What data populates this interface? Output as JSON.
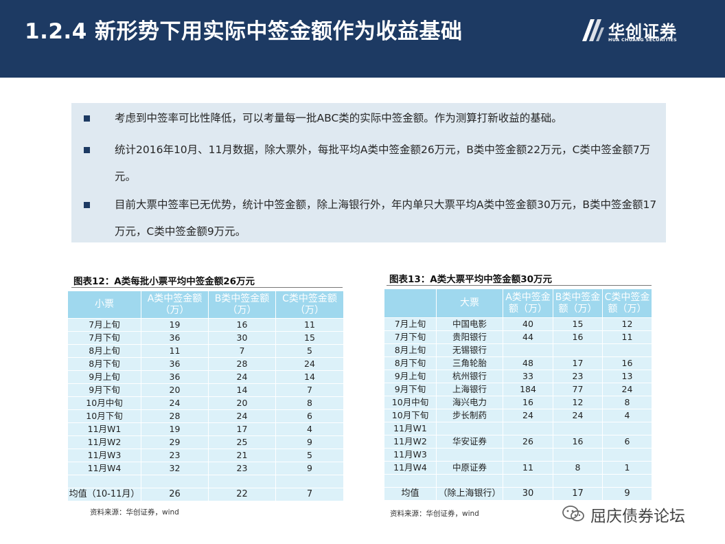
{
  "header": {
    "title": "1.2.4  新形势下用实际中签金额作为收益基础",
    "logo_cn": "华创证券",
    "logo_en": "HUA CHUANG SECURITIES"
  },
  "bullets": [
    "考虑到中签率可比性降低，可以考量每一批ABC类的实际中签金额。作为测算打新收益的基础。",
    "统计2016年10月、11月数据，除大票外，每批平均A类中签金额26万元，B类中签金额22万元，C类中签金额7万元。",
    "目前大票中签率已无优势，统计中签金额，除上海银行外，年内单只大票平均A类中签金额30万元，B类中签金额17万元，C类中签金额9万元。"
  ],
  "table12": {
    "caption": "图表12：A类每批小票平均中签金额26万元",
    "headers": [
      "小票",
      "A类中签金额（万）",
      "B类中签金额（万）",
      "C类中签金额（万）"
    ],
    "rows": [
      [
        "7月上旬",
        "19",
        "16",
        "11"
      ],
      [
        "7月下旬",
        "36",
        "30",
        "15"
      ],
      [
        "8月上旬",
        "11",
        "7",
        "5"
      ],
      [
        "8月下旬",
        "36",
        "28",
        "24"
      ],
      [
        "9月上旬",
        "36",
        "24",
        "14"
      ],
      [
        "9月下旬",
        "20",
        "14",
        "7"
      ],
      [
        "10月中旬",
        "24",
        "20",
        "8"
      ],
      [
        "10月下旬",
        "28",
        "24",
        "6"
      ],
      [
        "11月W1",
        "19",
        "17",
        "4"
      ],
      [
        "11月W2",
        "29",
        "25",
        "9"
      ],
      [
        "11月W3",
        "23",
        "21",
        "5"
      ],
      [
        "11月W4",
        "32",
        "23",
        "9"
      ],
      [
        "",
        "",
        "",
        ""
      ],
      [
        "均值（10-11月）",
        "26",
        "22",
        "7"
      ]
    ],
    "source": "资料来源：华创证券，wind"
  },
  "table13": {
    "caption": "图表13：A类大票平均中签金额30万元",
    "headers": [
      "",
      "大票",
      "A类中签金额（万）",
      "B类中签金额（万）",
      "C类中签金额（万）"
    ],
    "rows": [
      [
        "7月上旬",
        "中国电影",
        "40",
        "15",
        "12"
      ],
      [
        "7月下旬",
        "贵阳银行",
        "44",
        "16",
        "11"
      ],
      [
        "8月上旬",
        "无锡银行",
        "",
        "",
        ""
      ],
      [
        "8月下旬",
        "三角轮胎",
        "48",
        "17",
        "16"
      ],
      [
        "9月上旬",
        "杭州银行",
        "33",
        "23",
        "13"
      ],
      [
        "9月下旬",
        "上海银行",
        "184",
        "77",
        "24"
      ],
      [
        "10月中旬",
        "海兴电力",
        "16",
        "12",
        "8"
      ],
      [
        "10月下旬",
        "步长制药",
        "24",
        "24",
        "4"
      ],
      [
        "11月W1",
        "",
        "",
        "",
        ""
      ],
      [
        "11月W2",
        "华安证券",
        "26",
        "16",
        "6"
      ],
      [
        "11月W3",
        "",
        "",
        "",
        ""
      ],
      [
        "11月W4",
        "中原证券",
        "11",
        "8",
        "1"
      ],
      [
        "",
        "",
        "",
        "",
        ""
      ],
      [
        "均值",
        "（除上海银行）",
        "30",
        "17",
        "9"
      ]
    ],
    "source": "资料来源：华创证券，wind"
  },
  "watermark": "屈庆债券论坛",
  "colors": {
    "header_bg": "#1d3a63",
    "bullet_box": "#dfe9f1",
    "table_header": "#9fd8ee",
    "table_cell": "#dcf1f9"
  }
}
